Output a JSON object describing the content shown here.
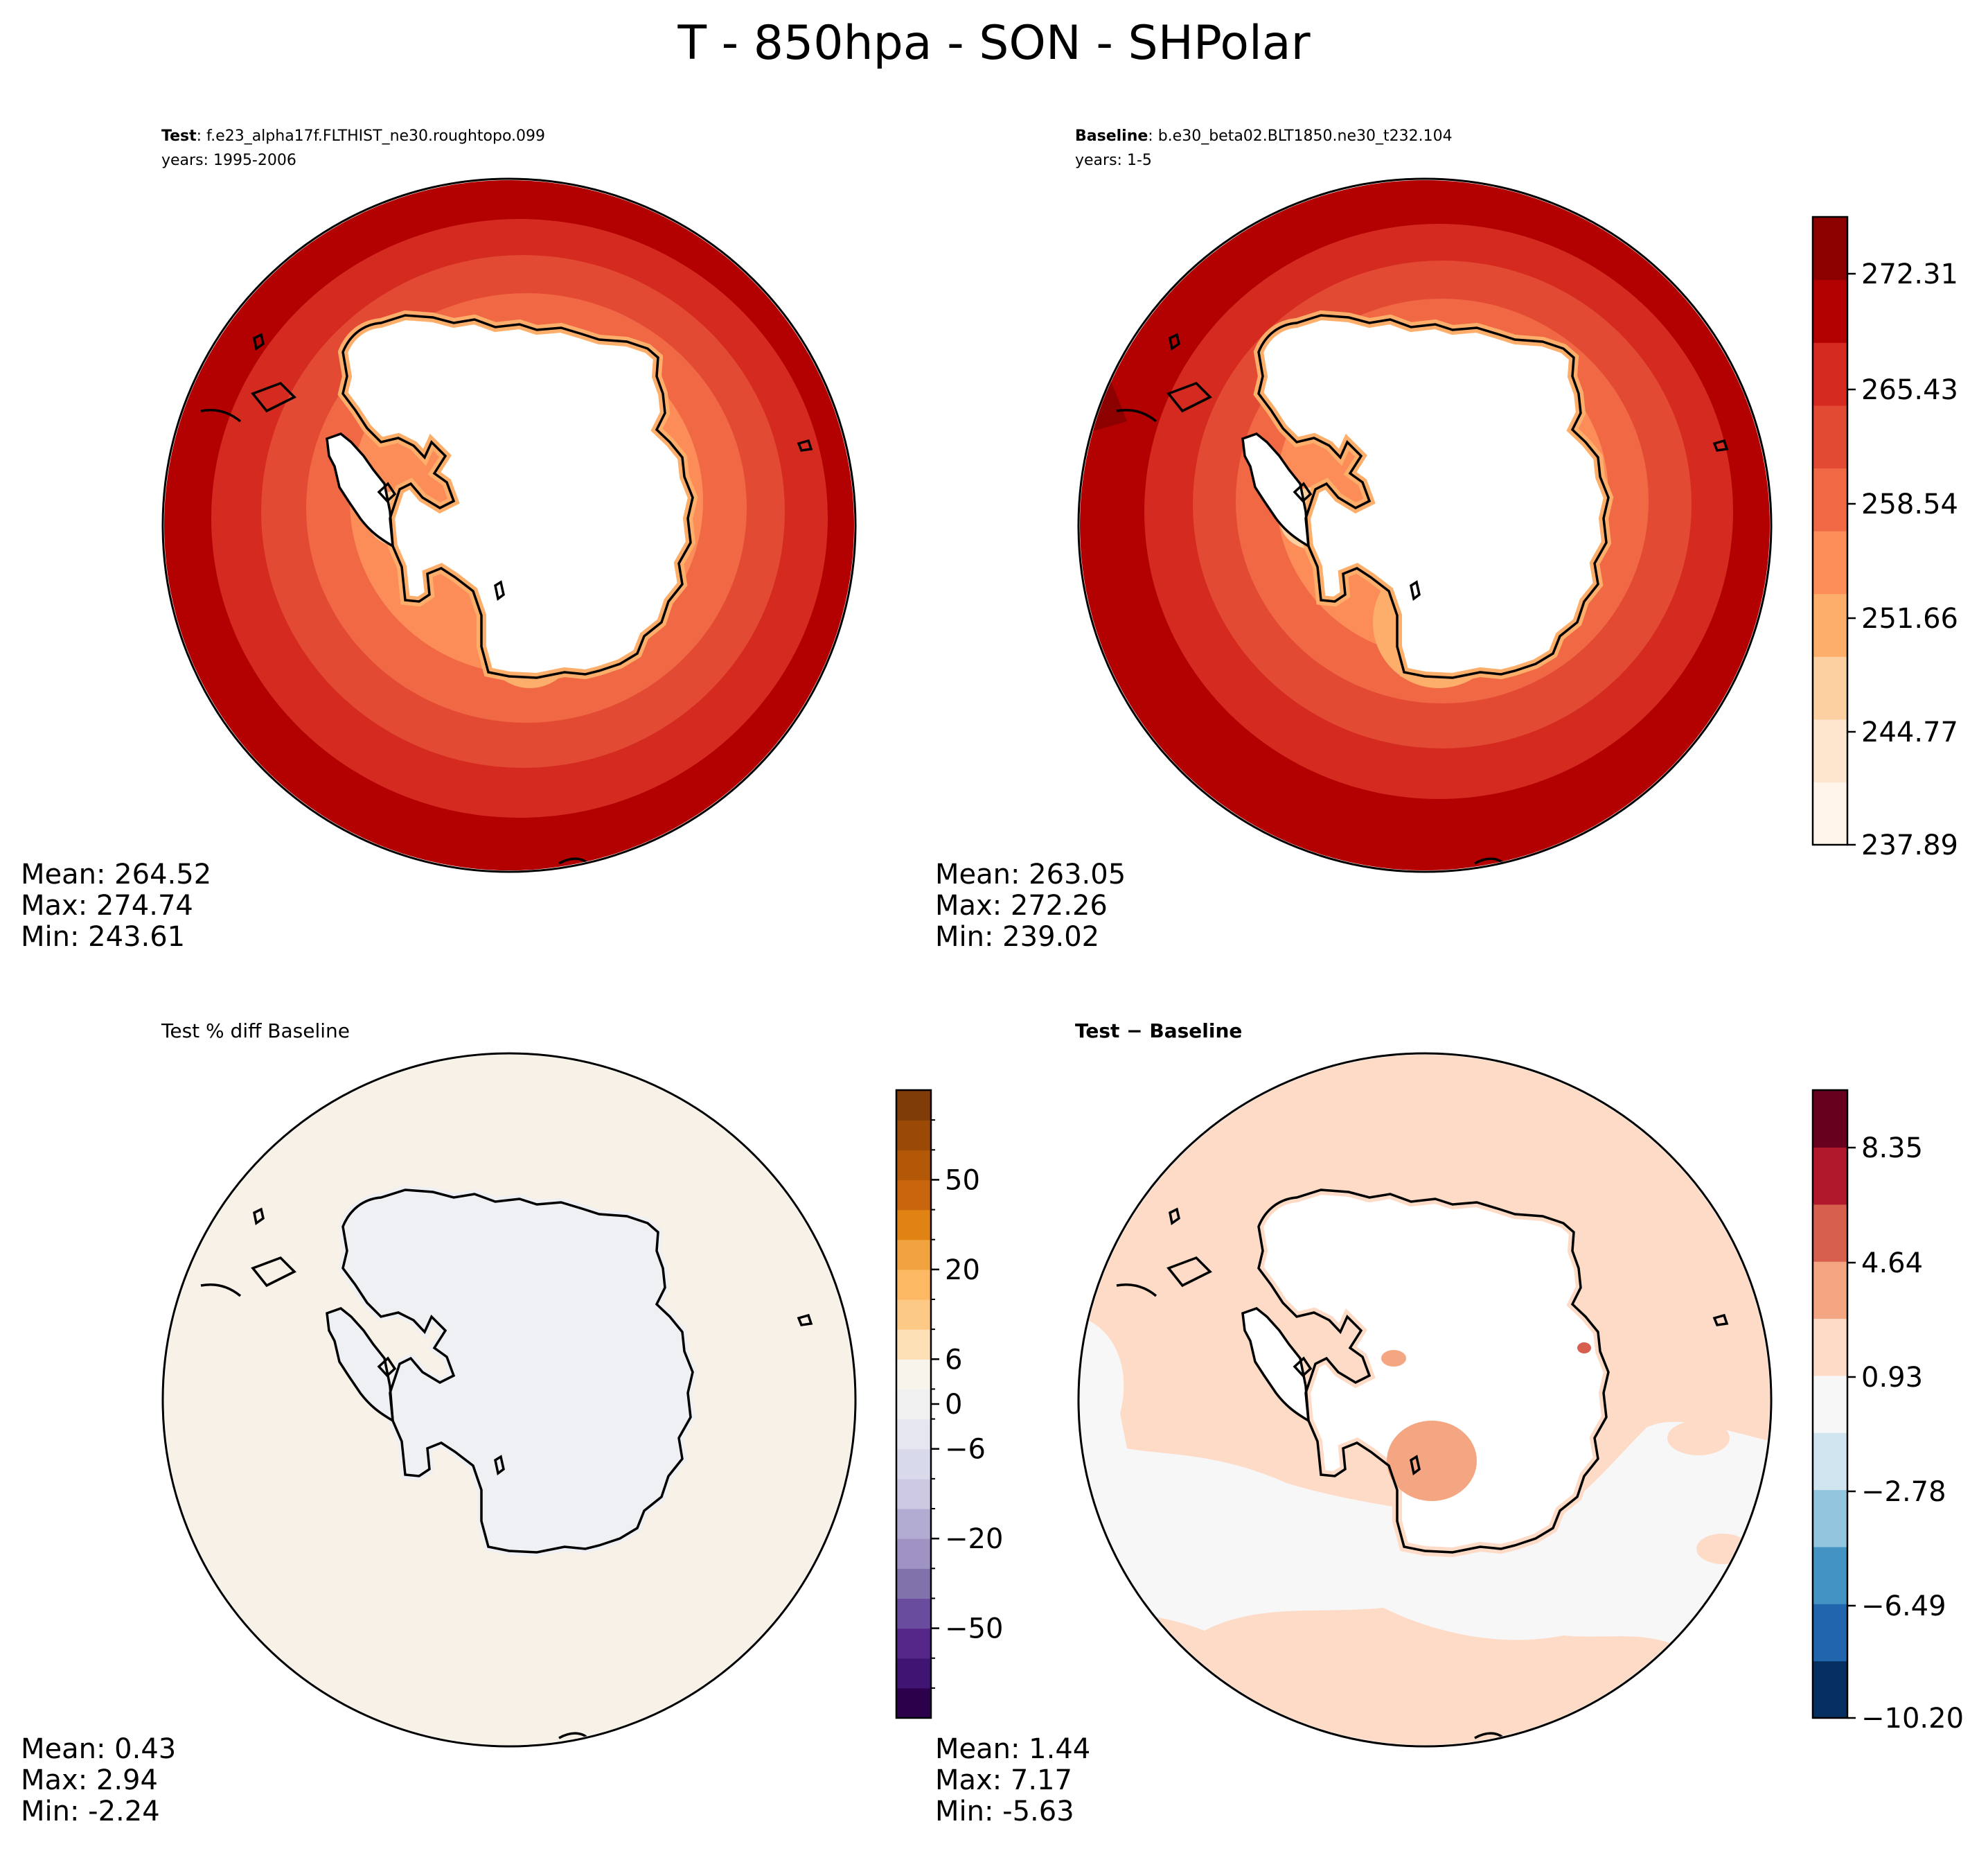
{
  "figure": {
    "title": "T - 850hpa - SON - SHPolar"
  },
  "panels": {
    "test": {
      "label_bold": "Test",
      "label_rest": ": f.e23_alpha17f.FLTHIST_ne30.roughtopo.099",
      "years": "years: 1995-2006",
      "stats": {
        "mean": "Mean: 264.52",
        "max": "Max: 274.74",
        "min": "Min: 243.61"
      }
    },
    "baseline": {
      "label_bold": "Baseline",
      "label_rest": ": b.e30_beta02.BLT1850.ne30_t232.104",
      "years": "years: 1-5",
      "stats": {
        "mean": "Mean: 263.05",
        "max": "Max: 272.26",
        "min": "Min: 239.02"
      }
    },
    "pct_diff": {
      "label": "Test % diff Baseline",
      "stats": {
        "mean": "Mean:  0.43",
        "max": "Max:  2.94",
        "min": "Min: -2.24"
      }
    },
    "diff": {
      "label": "Test − Baseline",
      "stats": {
        "mean": "Mean:  1.44",
        "max": "Max:  7.17",
        "min": "Min: -5.63"
      }
    }
  },
  "colorbars": {
    "abs": {
      "ticks": [
        "272.31",
        "265.43",
        "258.54",
        "251.66",
        "244.77",
        "237.89"
      ],
      "colors": [
        "#fff5eb",
        "#fee6ce",
        "#fdd0a2",
        "#fdae6b",
        "#fc8d59",
        "#f16844",
        "#e34a33",
        "#d42a1f",
        "#b30000",
        "#8c0000"
      ]
    },
    "pct": {
      "ticks": [
        "50",
        "20",
        "6",
        "0",
        "−6",
        "−20",
        "−50"
      ],
      "colors": [
        "#2d004b",
        "#3f1473",
        "#542788",
        "#6a4c9e",
        "#8073ac",
        "#9e93c2",
        "#b2abd2",
        "#cdc9e3",
        "#d8daeb",
        "#e6e6f0",
        "#f0f0f0",
        "#f7f4ec",
        "#fee0b6",
        "#fdc986",
        "#fdb863",
        "#f1a340",
        "#e08214",
        "#c9650c",
        "#b35806",
        "#9a4a06",
        "#7f3b08"
      ]
    },
    "diff": {
      "ticks": [
        "8.35",
        "4.64",
        "0.93",
        "−2.78",
        "−6.49",
        "−10.20"
      ],
      "colors": [
        "#053061",
        "#2166ac",
        "#4393c3",
        "#92c5de",
        "#d1e5f0",
        "#f7f7f7",
        "#fddbc7",
        "#f4a582",
        "#d6604d",
        "#b2182b",
        "#67001f"
      ]
    }
  },
  "chart_data": [
    {
      "type": "heatmap",
      "panel": "Test",
      "variable": "T",
      "level": "850hpa",
      "season": "SON",
      "region": "SHPolar",
      "run": "f.e23_alpha17f.FLTHIST_ne30.roughtopo.099",
      "years": "1995-2006",
      "mean": 264.52,
      "max": 274.74,
      "min": 243.61,
      "colorbar_range": [
        237.89,
        275.75
      ],
      "colorbar_ticks": [
        237.89,
        244.77,
        251.66,
        258.54,
        265.43,
        272.31
      ]
    },
    {
      "type": "heatmap",
      "panel": "Baseline",
      "run": "b.e30_beta02.BLT1850.ne30_t232.104",
      "years": "1-5",
      "mean": 263.05,
      "max": 272.26,
      "min": 239.02,
      "colorbar_range": [
        237.89,
        275.75
      ],
      "colorbar_ticks": [
        237.89,
        244.77,
        251.66,
        258.54,
        265.43,
        272.31
      ]
    },
    {
      "type": "heatmap",
      "panel": "Test % diff Baseline",
      "mean": 0.43,
      "max": 2.94,
      "min": -2.24,
      "colorbar_ticks": [
        -50,
        -20,
        -6,
        0,
        6,
        20,
        50
      ]
    },
    {
      "type": "heatmap",
      "panel": "Test - Baseline",
      "mean": 1.44,
      "max": 7.17,
      "min": -5.63,
      "colorbar_range": [
        -10.2,
        10.2
      ],
      "colorbar_ticks": [
        -10.2,
        -6.49,
        -2.78,
        0.93,
        4.64,
        8.35
      ]
    }
  ]
}
